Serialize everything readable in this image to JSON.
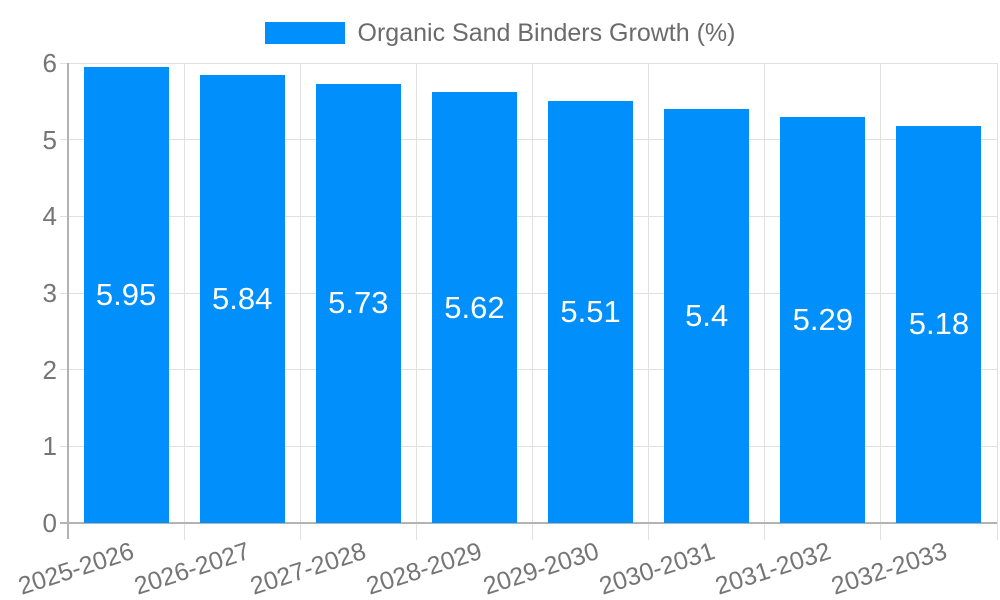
{
  "chart_data": {
    "type": "bar",
    "title": "Organic Sand Binders Growth (%)",
    "legend_position": "top-center",
    "categories": [
      "2025-2026",
      "2026-2027",
      "2027-2028",
      "2028-2029",
      "2029-2030",
      "2030-2031",
      "2031-2032",
      "2032-2033"
    ],
    "series": [
      {
        "name": "Organic Sand Binders Growth (%)",
        "values": [
          5.95,
          5.84,
          5.73,
          5.62,
          5.51,
          5.4,
          5.29,
          5.18
        ]
      }
    ],
    "xlabel": "",
    "ylabel": "",
    "ylim": [
      0,
      6
    ],
    "yticks": [
      0,
      1,
      2,
      3,
      4,
      5,
      6
    ],
    "grid": true,
    "colors": {
      "bar": "#008FFB",
      "value_label": "#FFFFFF",
      "legend_text": "#6B6B6B",
      "tick_text": "#757575",
      "gridline": "#E0E0E0",
      "axis_line": "#B3B3B3",
      "background": "#FFFFFF"
    }
  }
}
